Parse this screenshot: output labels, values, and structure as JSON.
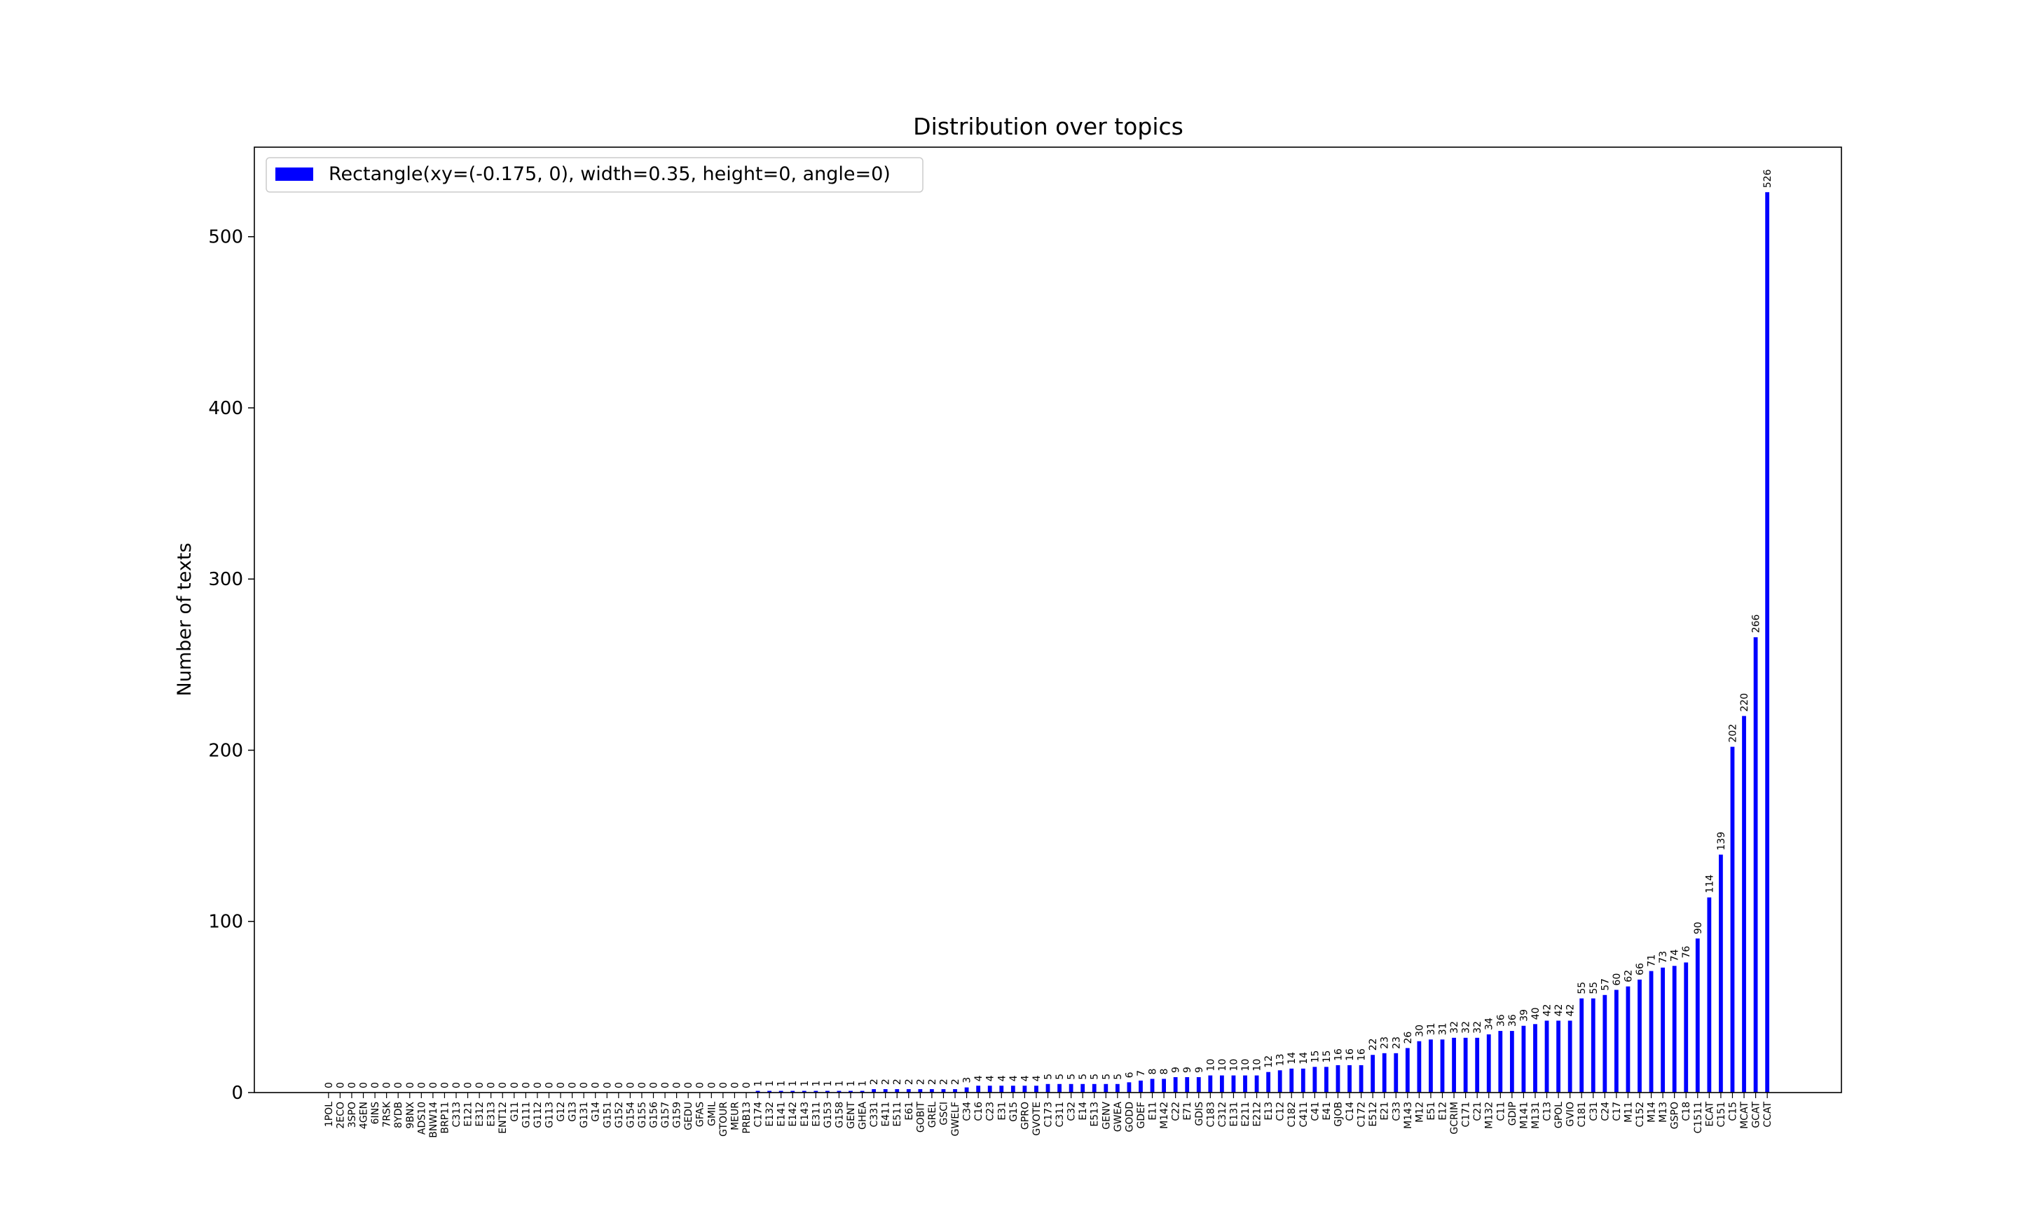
{
  "chart_data": {
    "type": "bar",
    "title": "Distribution over topics",
    "y_label": "Number of texts",
    "categories": [
      "1POL",
      "2ECO",
      "3SPO",
      "4GEN",
      "6INS",
      "7RSK",
      "8YDB",
      "9BNX",
      "ADS10",
      "BNW14",
      "BRP11",
      "C313",
      "E121",
      "E312",
      "E313",
      "ENT12",
      "G11",
      "G111",
      "G112",
      "G113",
      "G12",
      "G13",
      "G131",
      "G14",
      "G151",
      "G152",
      "G154",
      "G155",
      "G156",
      "G157",
      "G159",
      "GEDU",
      "GFAS",
      "GMIL",
      "GTOUR",
      "MEUR",
      "PRB13",
      "C174",
      "E132",
      "E141",
      "E142",
      "E143",
      "E311",
      "G153",
      "G158",
      "GENT",
      "GHEA",
      "C331",
      "E411",
      "E511",
      "E61",
      "GOBIT",
      "GREL",
      "GSCI",
      "GWELF",
      "C34",
      "C16",
      "C23",
      "E31",
      "G15",
      "GPRO",
      "GVOTE",
      "C173",
      "C311",
      "C32",
      "E14",
      "E513",
      "GENV",
      "GWEA",
      "GODD",
      "GDEF",
      "E11",
      "M142",
      "C22",
      "E71",
      "GDIS",
      "C183",
      "C312",
      "E131",
      "E211",
      "E212",
      "E13",
      "C12",
      "C182",
      "C411",
      "C41",
      "E41",
      "GJOB",
      "C14",
      "C172",
      "E512",
      "E21",
      "C33",
      "M143",
      "M12",
      "E51",
      "E12",
      "GCRIM",
      "C171",
      "C21",
      "M132",
      "C11",
      "GDIP",
      "M141",
      "M131",
      "C13",
      "GPOL",
      "GVIO",
      "C181",
      "C31",
      "C24",
      "C17",
      "M11",
      "C152",
      "M14",
      "M13",
      "GSPO",
      "C18",
      "C1511",
      "ECAT",
      "C151",
      "C15",
      "MCAT",
      "GCAT",
      "CCAT"
    ],
    "series": [
      {
        "name": "Rectangle(xy=(-0.175, 0), width=0.35, height=0, angle=0)",
        "color": "#0000ff",
        "values": [
          0,
          0,
          0,
          0,
          0,
          0,
          0,
          0,
          0,
          0,
          0,
          0,
          0,
          0,
          0,
          0,
          0,
          0,
          0,
          0,
          0,
          0,
          0,
          0,
          0,
          0,
          0,
          0,
          0,
          0,
          0,
          0,
          0,
          0,
          0,
          0,
          0,
          1,
          1,
          1,
          1,
          1,
          1,
          1,
          1,
          1,
          1,
          2,
          2,
          2,
          2,
          2,
          2,
          2,
          2,
          3,
          4,
          4,
          4,
          4,
          4,
          4,
          5,
          5,
          5,
          5,
          5,
          5,
          5,
          6,
          7,
          8,
          8,
          9,
          9,
          9,
          10,
          10,
          10,
          10,
          10,
          12,
          13,
          14,
          14,
          15,
          15,
          16,
          16,
          16,
          22,
          23,
          23,
          26,
          30,
          31,
          31,
          32,
          32,
          32,
          34,
          36,
          36,
          39,
          40,
          42,
          42,
          42,
          55,
          55,
          57,
          60,
          62,
          66,
          71,
          73,
          74,
          76,
          90,
          114,
          139,
          202,
          220,
          266,
          526
        ]
      }
    ],
    "ylim": [
      0,
      552.3
    ],
    "yticks": [
      0,
      100,
      200,
      300,
      400,
      500
    ],
    "legend": "upper left"
  }
}
